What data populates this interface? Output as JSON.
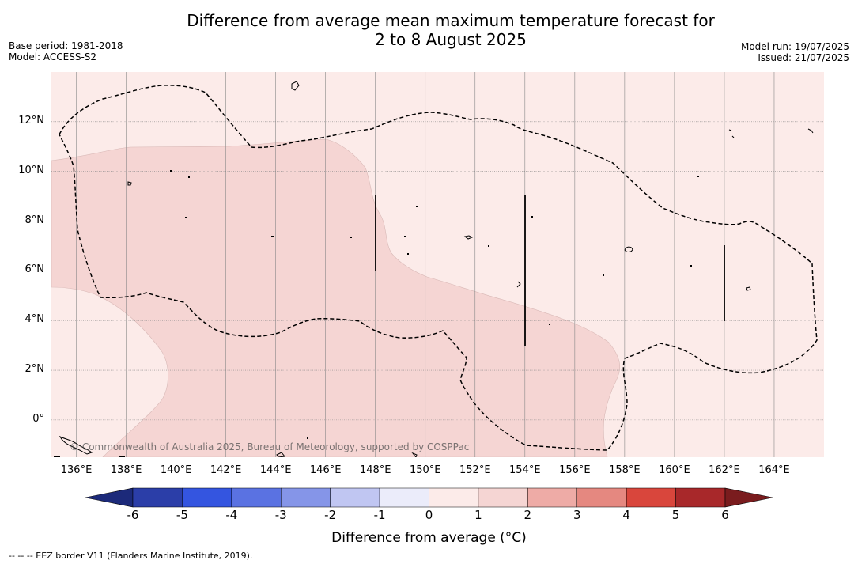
{
  "title": {
    "line1": "Difference from average mean maximum temperature forecast for",
    "line2": "2 to 8 August 2025"
  },
  "meta_left": {
    "base_period": "Base period: 1981-2018",
    "model": "Model: ACCESS-S2"
  },
  "meta_right": {
    "model_run": "Model run: 19/07/2025",
    "issued": "Issued: 21/07/2025"
  },
  "map": {
    "lon_range": [
      135,
      166
    ],
    "lat_range": [
      -1.5,
      14
    ],
    "lon_ticks": [
      {
        "value": 136,
        "label": "136°E"
      },
      {
        "value": 138,
        "label": "138°E"
      },
      {
        "value": 140,
        "label": "140°E"
      },
      {
        "value": 142,
        "label": "142°E"
      },
      {
        "value": 144,
        "label": "144°E"
      },
      {
        "value": 146,
        "label": "146°E"
      },
      {
        "value": 148,
        "label": "148°E"
      },
      {
        "value": 150,
        "label": "150°E"
      },
      {
        "value": 152,
        "label": "152°E"
      },
      {
        "value": 154,
        "label": "154°E"
      },
      {
        "value": 156,
        "label": "156°E"
      },
      {
        "value": 158,
        "label": "158°E"
      },
      {
        "value": 160,
        "label": "160°E"
      },
      {
        "value": 162,
        "label": "162°E"
      },
      {
        "value": 164,
        "label": "164°E"
      }
    ],
    "lat_ticks": [
      {
        "value": 12,
        "label": "12°N"
      },
      {
        "value": 10,
        "label": "10°N"
      },
      {
        "value": 8,
        "label": "8°N"
      },
      {
        "value": 6,
        "label": "6°N"
      },
      {
        "value": 4,
        "label": "4°N"
      },
      {
        "value": 2,
        "label": "2°N"
      },
      {
        "value": 0,
        "label": "0°"
      }
    ],
    "background_category": "0 to 1",
    "colors": {
      "0 to 1": "#fcebe9",
      "1 to 2": "#f5d5d3",
      "grid": "#888888"
    },
    "copyright": "© Commonwealth of Australia 2025, Bureau of Meteorology, supported by COSPPac"
  },
  "colorbar": {
    "ticks": [
      "-6",
      "-5",
      "-4",
      "-3",
      "-2",
      "-1",
      "0",
      "1",
      "2",
      "3",
      "4",
      "5",
      "6"
    ],
    "colors": [
      "#2b3ea8",
      "#3455e0",
      "#5a72e2",
      "#8595e8",
      "#c0c6f2",
      "#ebecfa",
      "#fcebe9",
      "#f5d5d3",
      "#eeaba6",
      "#e58880",
      "#d9463c",
      "#a8282a"
    ],
    "under_color": "#1c2a7a",
    "over_color": "#7a1c1e",
    "label": "Difference from average (°C)"
  },
  "footnote": "-- -- -- EEZ border V11 (Flanders Marine Institute, 2019)."
}
